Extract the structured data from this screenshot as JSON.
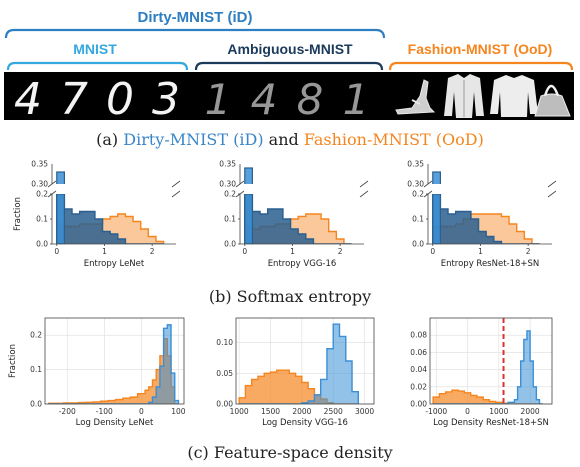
{
  "header": {
    "dirty_label": "Dirty-MNIST (iD)",
    "mnist_label": "MNIST",
    "ambiguous_label": "Ambiguous-MNIST",
    "fashion_label": "Fashion-MNIST (OoD)",
    "mnist_digits": [
      "4",
      "7",
      "0",
      "3"
    ],
    "ambiguous_digits": [
      "1",
      "4",
      "8",
      "1"
    ],
    "fashion_items": [
      "sandal-icon",
      "coat-icon",
      "pullover-icon",
      "bag-icon"
    ]
  },
  "captions": {
    "a_prefix": "(a) ",
    "a_id": "Dirty-MNIST (iD)",
    "a_and": " and ",
    "a_ood": "Fashion-MNIST (OoD)",
    "b": "(b) Softmax entropy",
    "c": "(c) Feature-space density"
  },
  "colors": {
    "id_blue": "#3a8fd6",
    "id_blue_dark": "#2a5f8f",
    "ood_orange": "#f5851f",
    "dirty_blue": "#2d7fc1",
    "ambiguous_navy": "#1b3a5c",
    "mnist_cyan": "#35a8e0",
    "threshold_red": "#e03030"
  },
  "chart_data": [
    {
      "type": "bar",
      "title": "",
      "xlabel": "Entropy LeNet",
      "ylabel": "Fraction",
      "broken_axis": true,
      "lower_ylim": [
        0,
        0.2
      ],
      "upper_ylim": [
        0.3,
        0.35
      ],
      "lower_yticks": [
        "0.0",
        "0.1",
        "0.2"
      ],
      "upper_yticks": [
        "0.30",
        "0.35"
      ],
      "xlim": [
        -0.1,
        2.5
      ],
      "xticks": [
        "0",
        "1",
        "2"
      ],
      "bin_edges": [
        0,
        0.16,
        0.32,
        0.48,
        0.64,
        0.8,
        0.96,
        1.12,
        1.28,
        1.44,
        1.6,
        1.76,
        1.92,
        2.08,
        2.24
      ],
      "series": [
        {
          "values": [
            0.33,
            0.14,
            0.12,
            0.13,
            0.13,
            0.1,
            0.05,
            0.04,
            0.02,
            0.0,
            0.0,
            0.0,
            0.0,
            0.0
          ]
        },
        {
          "values": [
            0.08,
            0.07,
            0.07,
            0.08,
            0.08,
            0.08,
            0.1,
            0.11,
            0.12,
            0.11,
            0.09,
            0.06,
            0.03,
            0.01
          ]
        }
      ]
    },
    {
      "type": "bar",
      "title": "",
      "xlabel": "Entropy VGG-16",
      "ylabel": "",
      "broken_axis": true,
      "lower_ylim": [
        0,
        0.2
      ],
      "upper_ylim": [
        0.3,
        0.35
      ],
      "lower_yticks": [
        "0.0",
        "0.1",
        "0.2"
      ],
      "upper_yticks": [
        "0.30",
        "0.35"
      ],
      "xlim": [
        -0.1,
        2.5
      ],
      "xticks": [
        "0",
        "1",
        "2"
      ],
      "bin_edges": [
        0,
        0.16,
        0.32,
        0.48,
        0.64,
        0.8,
        0.96,
        1.12,
        1.28,
        1.44,
        1.6,
        1.76,
        1.92,
        2.08,
        2.24
      ],
      "series": [
        {
          "values": [
            0.34,
            0.13,
            0.12,
            0.14,
            0.14,
            0.1,
            0.06,
            0.04,
            0.02,
            0.0,
            0.0,
            0.0,
            0.0,
            0.0
          ]
        },
        {
          "values": [
            0.07,
            0.06,
            0.07,
            0.07,
            0.08,
            0.08,
            0.1,
            0.11,
            0.12,
            0.12,
            0.1,
            0.05,
            0.02,
            0.0
          ]
        }
      ]
    },
    {
      "type": "bar",
      "title": "",
      "xlabel": "Entropy ResNet-18+SN",
      "ylabel": "",
      "broken_axis": true,
      "lower_ylim": [
        0,
        0.2
      ],
      "upper_ylim": [
        0.3,
        0.35
      ],
      "lower_yticks": [
        "0.0",
        "0.1",
        "0.2"
      ],
      "upper_yticks": [
        "0.30",
        "0.35"
      ],
      "xlim": [
        -0.1,
        2.5
      ],
      "xticks": [
        "0",
        "1",
        "2"
      ],
      "bin_edges": [
        0,
        0.16,
        0.32,
        0.48,
        0.64,
        0.8,
        0.96,
        1.12,
        1.28,
        1.44,
        1.6,
        1.76,
        1.92,
        2.08,
        2.24
      ],
      "series": [
        {
          "values": [
            0.33,
            0.14,
            0.12,
            0.13,
            0.13,
            0.1,
            0.05,
            0.03,
            0.01,
            0.0,
            0.0,
            0.0,
            0.0,
            0.0
          ]
        },
        {
          "values": [
            0.07,
            0.07,
            0.07,
            0.08,
            0.1,
            0.12,
            0.12,
            0.12,
            0.12,
            0.11,
            0.08,
            0.05,
            0.02,
            0.0
          ]
        }
      ]
    },
    {
      "type": "bar",
      "title": "",
      "xlabel": "Log Density LeNet",
      "ylabel": "Fraction",
      "xlim": [
        -260,
        115
      ],
      "ylim": [
        0,
        0.25
      ],
      "xticks": [
        "-200",
        "-100",
        "0",
        "100"
      ],
      "xtick_values": [
        -200,
        -100,
        0,
        100
      ],
      "yticks": [
        "0.0",
        "0.1",
        "0.2"
      ],
      "ytick_values": [
        0,
        0.1,
        0.2
      ],
      "bin_edges": [
        -250,
        -230,
        -210,
        -190,
        -170,
        -150,
        -130,
        -110,
        -90,
        -70,
        -50,
        -30,
        -10,
        10,
        20,
        30,
        40,
        50,
        60,
        70,
        80,
        90,
        100
      ],
      "series": [
        {
          "values": [
            0,
            0,
            0,
            0,
            0,
            0,
            0,
            0,
            0,
            0,
            0,
            0,
            0,
            0,
            0.005,
            0.02,
            0.05,
            0.11,
            0.22,
            0.23,
            0.09,
            0.01
          ]
        },
        {
          "values": [
            0.002,
            0.002,
            0.003,
            0.003,
            0.004,
            0.005,
            0.006,
            0.008,
            0.01,
            0.013,
            0.017,
            0.02,
            0.03,
            0.04,
            0.05,
            0.07,
            0.1,
            0.14,
            0.19,
            0.14,
            0.05,
            0.0
          ]
        }
      ]
    },
    {
      "type": "bar",
      "title": "",
      "xlabel": "Log Density VGG-16",
      "ylabel": "",
      "xlim": [
        950,
        3150
      ],
      "ylim": [
        0,
        0.14
      ],
      "xticks": [
        "1000",
        "1500",
        "2000",
        "2500",
        "3000"
      ],
      "xtick_values": [
        1000,
        1500,
        2000,
        2500,
        3000
      ],
      "yticks": [
        "0.00",
        "0.05",
        "0.10"
      ],
      "ytick_values": [
        0,
        0.05,
        0.1
      ],
      "bin_edges": [
        1000,
        1100,
        1200,
        1300,
        1400,
        1500,
        1600,
        1700,
        1800,
        1900,
        2000,
        2100,
        2200,
        2300,
        2400,
        2500,
        2600,
        2700,
        2800,
        2900
      ],
      "series": [
        {
          "values": [
            0,
            0,
            0,
            0,
            0,
            0,
            0,
            0,
            0,
            0,
            0.002,
            0.005,
            0.015,
            0.04,
            0.09,
            0.13,
            0.11,
            0.07,
            0.02
          ]
        },
        {
          "values": [
            0.01,
            0.03,
            0.04,
            0.045,
            0.05,
            0.052,
            0.055,
            0.055,
            0.05,
            0.045,
            0.035,
            0.025,
            0.015,
            0.008,
            0.002,
            0,
            0,
            0,
            0
          ]
        }
      ]
    },
    {
      "type": "bar",
      "title": "",
      "xlabel": "Log Density ResNet-18+SN",
      "ylabel": "",
      "xlim": [
        -1200,
        2700
      ],
      "ylim": [
        0,
        0.1
      ],
      "xticks": [
        "-1000",
        "0",
        "1000",
        "2000"
      ],
      "xtick_values": [
        -1000,
        0,
        1000,
        2000
      ],
      "yticks": [
        "0.00",
        "0.02",
        "0.04",
        "0.06",
        "0.08"
      ],
      "ytick_values": [
        0,
        0.02,
        0.04,
        0.06,
        0.08
      ],
      "threshold": 1150,
      "bin_edges": [
        -1100,
        -900,
        -700,
        -500,
        -300,
        -100,
        100,
        300,
        500,
        700,
        900,
        1100,
        1300,
        1500,
        1600,
        1700,
        1800,
        1900,
        2000,
        2100,
        2200,
        2300,
        2400
      ],
      "series": [
        {
          "values": [
            0,
            0,
            0,
            0,
            0,
            0,
            0,
            0,
            0,
            0,
            0,
            0,
            0.002,
            0.005,
            0.02,
            0.05,
            0.075,
            0.085,
            0.05,
            0.02,
            0.005,
            0
          ]
        },
        {
          "values": [
            0.008,
            0.012,
            0.014,
            0.016,
            0.015,
            0.013,
            0.01,
            0.008,
            0.005,
            0.003,
            0.002,
            0.001,
            0,
            0,
            0,
            0,
            0,
            0,
            0,
            0,
            0,
            0
          ]
        }
      ]
    }
  ]
}
